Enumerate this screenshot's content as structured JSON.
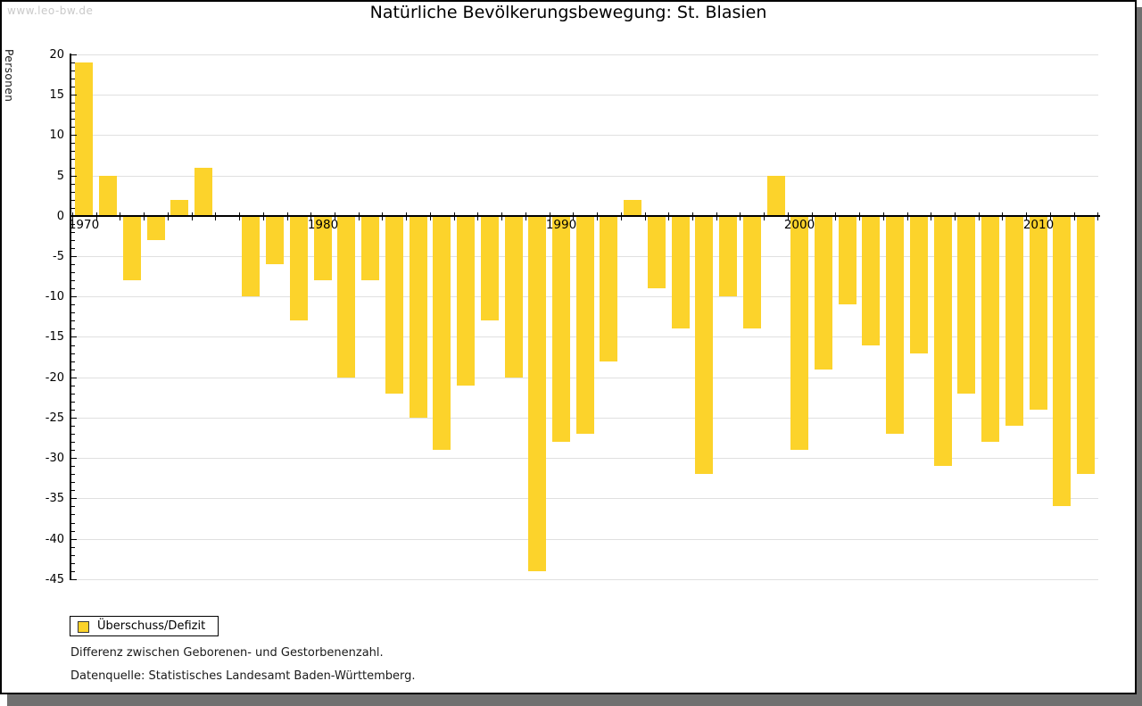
{
  "watermark": "www.leo-bw.de",
  "title": "Natürliche Bevölkerungsbewegung: St. Blasien",
  "legend": {
    "label": "Überschuss/Defizit"
  },
  "footnotes": [
    "Differenz zwischen Geborenen- und Gestorbenenzahl.",
    "Datenquelle: Statistisches Landesamt Baden-Württemberg."
  ],
  "colors": {
    "bar": "#fcd32b",
    "gridline": "#e0e0e0",
    "axis": "#000000",
    "watermark": "#c9c9c9",
    "frame_shadow": "#707070"
  },
  "chart_data": {
    "type": "bar",
    "title": "Natürliche Bevölkerungsbewegung: St. Blasien",
    "xlabel": "",
    "ylabel": "Personen",
    "series_name": "Überschuss/Defizit",
    "categories": [
      1970,
      1971,
      1972,
      1973,
      1974,
      1975,
      1976,
      1977,
      1978,
      1979,
      1980,
      1981,
      1982,
      1983,
      1984,
      1985,
      1986,
      1987,
      1988,
      1989,
      1990,
      1991,
      1992,
      1993,
      1994,
      1995,
      1996,
      1997,
      1998,
      1999,
      2000,
      2001,
      2002,
      2003,
      2004,
      2005,
      2006,
      2007,
      2008,
      2009,
      2010,
      2011,
      2012
    ],
    "values": [
      19,
      5,
      -8,
      -3,
      2,
      6,
      0,
      -10,
      -6,
      -13,
      -8,
      -20,
      -8,
      -22,
      -25,
      -29,
      -21,
      -13,
      -20,
      -44,
      -28,
      -27,
      -18,
      2,
      -9,
      -14,
      -32,
      -10,
      -14,
      5,
      -29,
      -19,
      -11,
      -16,
      -27,
      -17,
      -31,
      -22,
      -28,
      -26,
      -24,
      -36,
      -32
    ],
    "ylim": [
      -45,
      20
    ],
    "ytick_step": 5,
    "ytick_minor_step": 1,
    "xtick_labels": [
      1970,
      1980,
      1990,
      2000,
      2010
    ],
    "grid": "horizontal",
    "legend_position": "bottom-left"
  }
}
